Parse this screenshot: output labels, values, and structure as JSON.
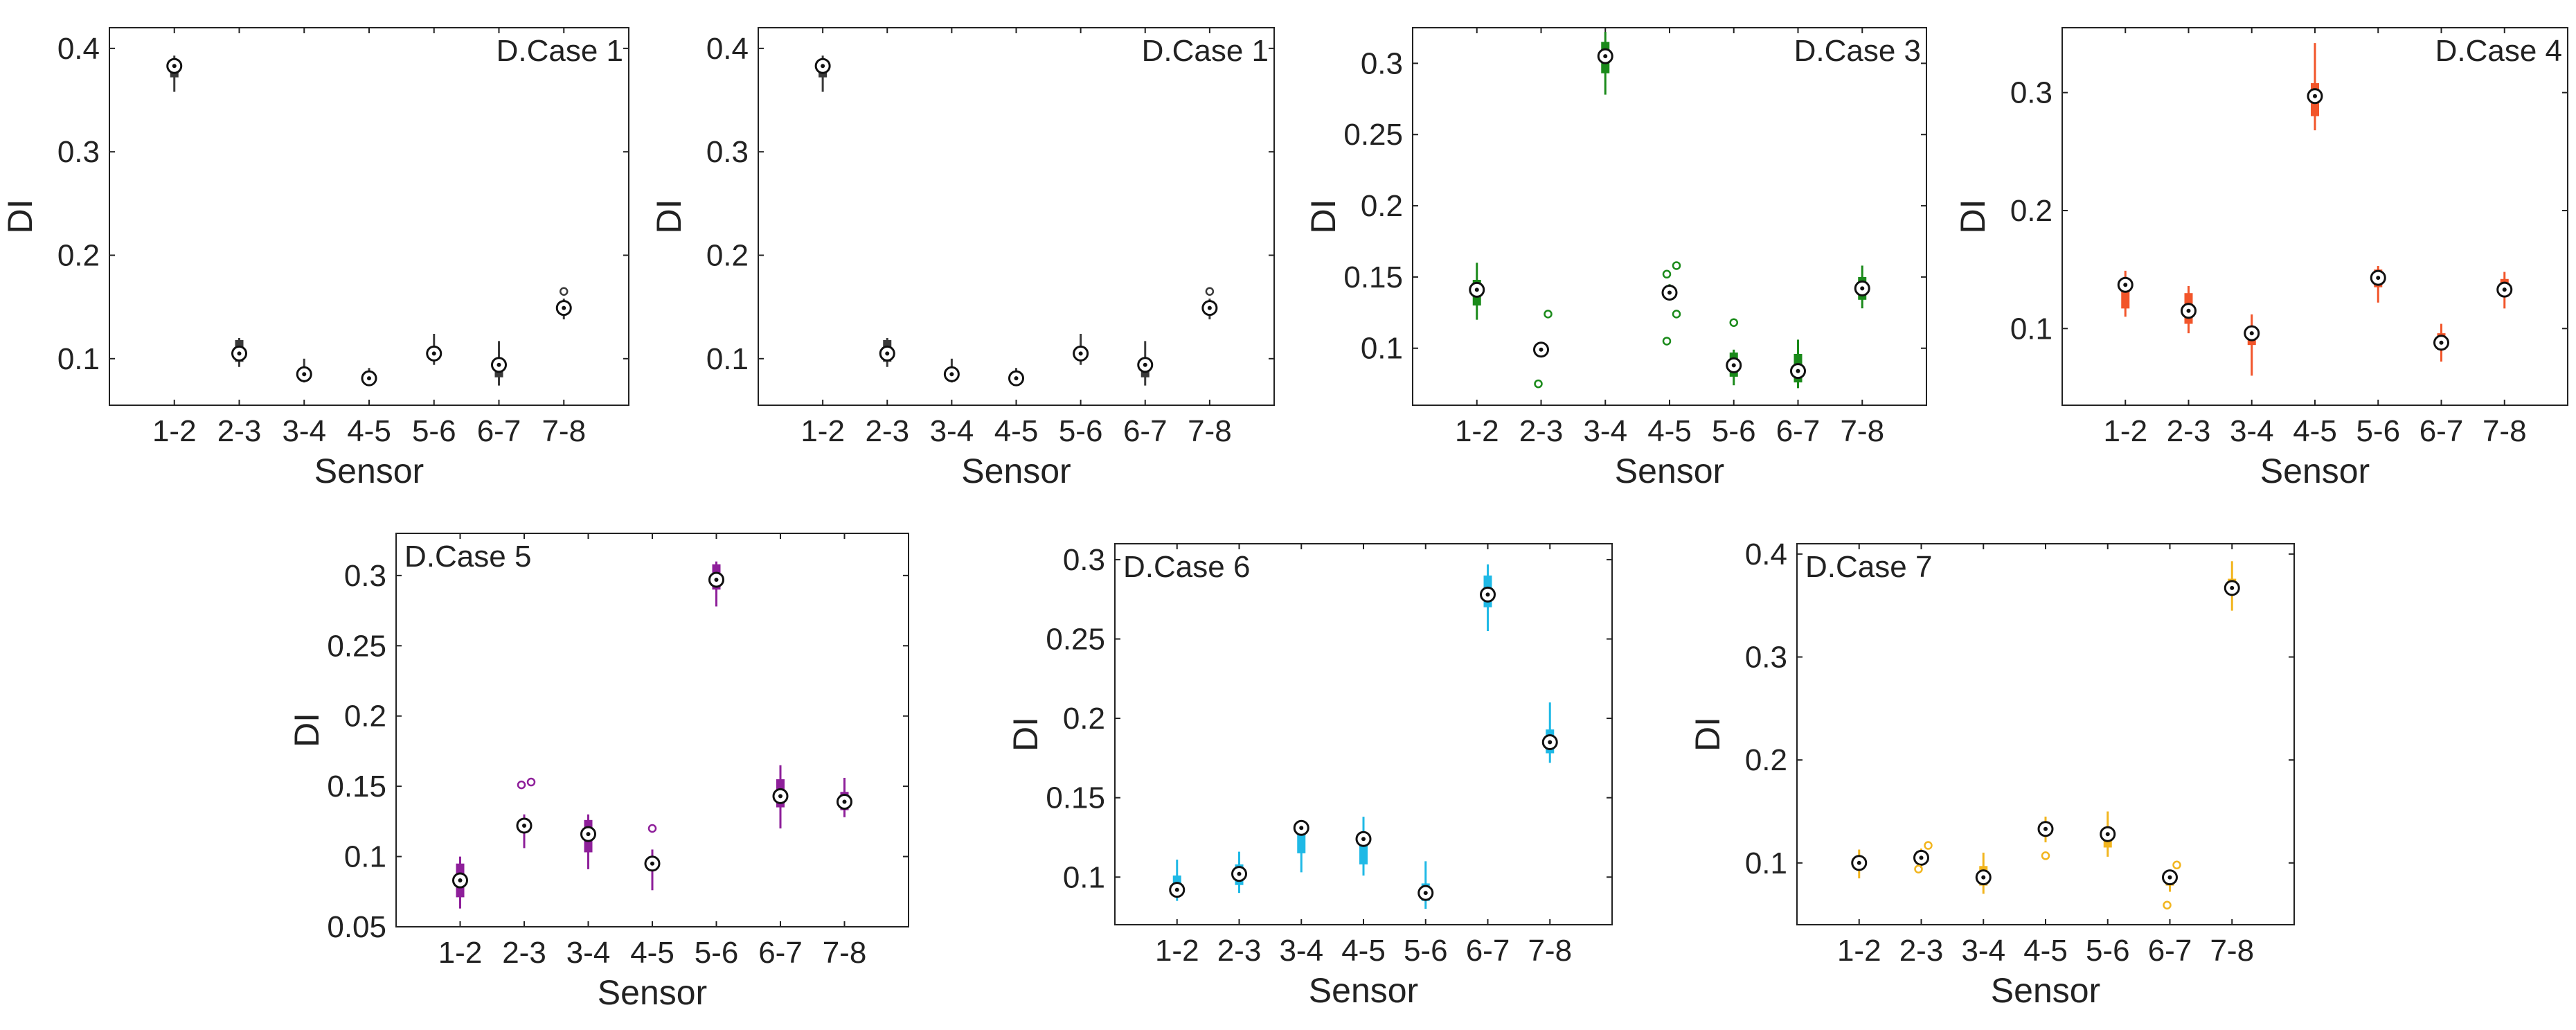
{
  "chart_data": [
    {
      "type": "boxplot",
      "title": "D.Case 1",
      "xlabel": "Sensor",
      "ylabel": "DI",
      "color": "#3a3a3a",
      "ylim": [
        0.055,
        0.42
      ],
      "yticks": [
        0.1,
        0.2,
        0.3,
        0.4
      ],
      "ytick_labels": [
        "0.1",
        "0.2",
        "0.3",
        "0.4"
      ],
      "categories": [
        "1-2",
        "2-3",
        "3-4",
        "4-5",
        "5-6",
        "6-7",
        "7-8"
      ],
      "boxes": [
        {
          "q1": 0.372,
          "q3": 0.388,
          "median": 0.383,
          "wlo": 0.358,
          "whi": 0.393,
          "outliers": []
        },
        {
          "q1": 0.097,
          "q3": 0.118,
          "median": 0.105,
          "wlo": 0.092,
          "whi": 0.12,
          "outliers": []
        },
        {
          "q1": 0.08,
          "q3": 0.088,
          "median": 0.085,
          "wlo": 0.077,
          "whi": 0.1,
          "outliers": []
        },
        {
          "q1": 0.078,
          "q3": 0.084,
          "median": 0.081,
          "wlo": 0.074,
          "whi": 0.091,
          "outliers": []
        },
        {
          "q1": 0.1,
          "q3": 0.109,
          "median": 0.105,
          "wlo": 0.094,
          "whi": 0.124,
          "outliers": []
        },
        {
          "q1": 0.082,
          "q3": 0.097,
          "median": 0.094,
          "wlo": 0.074,
          "whi": 0.117,
          "outliers": []
        },
        {
          "q1": 0.145,
          "q3": 0.152,
          "median": 0.149,
          "wlo": 0.138,
          "whi": 0.158,
          "outliers": [
            0.165
          ]
        }
      ]
    },
    {
      "type": "boxplot",
      "title": "D.Case 1",
      "xlabel": "Sensor",
      "ylabel": "DI",
      "color": "#3a3a3a",
      "ylim": [
        0.055,
        0.42
      ],
      "yticks": [
        0.1,
        0.2,
        0.3,
        0.4
      ],
      "ytick_labels": [
        "0.1",
        "0.2",
        "0.3",
        "0.4"
      ],
      "categories": [
        "1-2",
        "2-3",
        "3-4",
        "4-5",
        "5-6",
        "6-7",
        "7-8"
      ],
      "boxes": [
        {
          "q1": 0.372,
          "q3": 0.388,
          "median": 0.383,
          "wlo": 0.358,
          "whi": 0.393,
          "outliers": []
        },
        {
          "q1": 0.097,
          "q3": 0.118,
          "median": 0.105,
          "wlo": 0.092,
          "whi": 0.12,
          "outliers": []
        },
        {
          "q1": 0.08,
          "q3": 0.088,
          "median": 0.085,
          "wlo": 0.077,
          "whi": 0.1,
          "outliers": []
        },
        {
          "q1": 0.078,
          "q3": 0.084,
          "median": 0.081,
          "wlo": 0.074,
          "whi": 0.091,
          "outliers": []
        },
        {
          "q1": 0.1,
          "q3": 0.109,
          "median": 0.105,
          "wlo": 0.094,
          "whi": 0.124,
          "outliers": []
        },
        {
          "q1": 0.082,
          "q3": 0.097,
          "median": 0.094,
          "wlo": 0.074,
          "whi": 0.117,
          "outliers": []
        },
        {
          "q1": 0.145,
          "q3": 0.152,
          "median": 0.149,
          "wlo": 0.138,
          "whi": 0.158,
          "outliers": [
            0.165
          ]
        }
      ]
    },
    {
      "type": "boxplot",
      "title": "D.Case 3",
      "xlabel": "Sensor",
      "ylabel": "DI",
      "color": "#1a8a1a",
      "ylim": [
        0.06,
        0.325
      ],
      "yticks": [
        0.1,
        0.15,
        0.2,
        0.25,
        0.3
      ],
      "ytick_labels": [
        "0.1",
        "0.15",
        "0.2",
        "0.25",
        "0.3"
      ],
      "categories": [
        "1-2",
        "2-3",
        "3-4",
        "4-5",
        "5-6",
        "6-7",
        "7-8"
      ],
      "boxes": [
        {
          "q1": 0.13,
          "q3": 0.148,
          "median": 0.141,
          "wlo": 0.12,
          "whi": 0.16,
          "outliers": []
        },
        {
          "q1": 0.096,
          "q3": 0.102,
          "median": 0.099,
          "wlo": 0.094,
          "whi": 0.104,
          "outliers": [
            0.124,
            0.075
          ]
        },
        {
          "q1": 0.293,
          "q3": 0.315,
          "median": 0.305,
          "wlo": 0.278,
          "whi": 0.322,
          "outliers": []
        },
        {
          "q1": 0.136,
          "q3": 0.142,
          "median": 0.139,
          "wlo": 0.134,
          "whi": 0.145,
          "outliers": [
            0.158,
            0.152,
            0.124,
            0.105
          ]
        },
        {
          "q1": 0.08,
          "q3": 0.097,
          "median": 0.088,
          "wlo": 0.074,
          "whi": 0.099,
          "outliers": [
            0.118
          ]
        },
        {
          "q1": 0.076,
          "q3": 0.096,
          "median": 0.084,
          "wlo": 0.072,
          "whi": 0.106,
          "outliers": []
        },
        {
          "q1": 0.134,
          "q3": 0.15,
          "median": 0.142,
          "wlo": 0.128,
          "whi": 0.158,
          "outliers": []
        }
      ]
    },
    {
      "type": "boxplot",
      "title": "D.Case 4",
      "xlabel": "Sensor",
      "ylabel": "DI",
      "color": "#f2552a",
      "ylim": [
        0.035,
        0.355
      ],
      "yticks": [
        0.1,
        0.2,
        0.3
      ],
      "ytick_labels": [
        "0.1",
        "0.2",
        "0.3"
      ],
      "categories": [
        "1-2",
        "2-3",
        "3-4",
        "4-5",
        "5-6",
        "6-7",
        "7-8"
      ],
      "boxes": [
        {
          "q1": 0.117,
          "q3": 0.142,
          "median": 0.137,
          "wlo": 0.11,
          "whi": 0.149,
          "outliers": []
        },
        {
          "q1": 0.104,
          "q3": 0.13,
          "median": 0.115,
          "wlo": 0.096,
          "whi": 0.136,
          "outliers": []
        },
        {
          "q1": 0.086,
          "q3": 0.1,
          "median": 0.096,
          "wlo": 0.06,
          "whi": 0.112,
          "outliers": []
        },
        {
          "q1": 0.28,
          "q3": 0.308,
          "median": 0.297,
          "wlo": 0.268,
          "whi": 0.342,
          "outliers": []
        },
        {
          "q1": 0.135,
          "q3": 0.15,
          "median": 0.143,
          "wlo": 0.122,
          "whi": 0.153,
          "outliers": []
        },
        {
          "q1": 0.082,
          "q3": 0.096,
          "median": 0.088,
          "wlo": 0.072,
          "whi": 0.104,
          "outliers": []
        },
        {
          "q1": 0.127,
          "q3": 0.142,
          "median": 0.133,
          "wlo": 0.117,
          "whi": 0.148,
          "outliers": []
        }
      ]
    },
    {
      "type": "boxplot",
      "title": "D.Case 5",
      "xlabel": "Sensor",
      "ylabel": "DI",
      "color": "#8e1f9a",
      "ylim": [
        0.05,
        0.33
      ],
      "yticks": [
        0.05,
        0.1,
        0.15,
        0.2,
        0.25,
        0.3
      ],
      "ytick_labels": [
        "0.05",
        "0.1",
        "0.15",
        "0.2",
        "0.25",
        "0.3"
      ],
      "categories": [
        "1-2",
        "2-3",
        "3-4",
        "4-5",
        "5-6",
        "6-7",
        "7-8"
      ],
      "boxes": [
        {
          "q1": 0.071,
          "q3": 0.095,
          "median": 0.083,
          "wlo": 0.063,
          "whi": 0.1,
          "outliers": []
        },
        {
          "q1": 0.117,
          "q3": 0.127,
          "median": 0.122,
          "wlo": 0.106,
          "whi": 0.13,
          "outliers": [
            0.153,
            0.151
          ]
        },
        {
          "q1": 0.103,
          "q3": 0.126,
          "median": 0.116,
          "wlo": 0.091,
          "whi": 0.13,
          "outliers": []
        },
        {
          "q1": 0.09,
          "q3": 0.1,
          "median": 0.095,
          "wlo": 0.076,
          "whi": 0.105,
          "outliers": [
            0.12
          ]
        },
        {
          "q1": 0.29,
          "q3": 0.308,
          "median": 0.297,
          "wlo": 0.278,
          "whi": 0.31,
          "outliers": []
        },
        {
          "q1": 0.135,
          "q3": 0.155,
          "median": 0.143,
          "wlo": 0.12,
          "whi": 0.165,
          "outliers": []
        },
        {
          "q1": 0.133,
          "q3": 0.146,
          "median": 0.139,
          "wlo": 0.128,
          "whi": 0.156,
          "outliers": []
        }
      ]
    },
    {
      "type": "boxplot",
      "title": "D.Case 6",
      "xlabel": "Sensor",
      "ylabel": "DI",
      "color": "#1fb9e6",
      "ylim": [
        0.07,
        0.31
      ],
      "yticks": [
        0.1,
        0.15,
        0.2,
        0.25,
        0.3
      ],
      "ytick_labels": [
        "0.1",
        "0.15",
        "0.2",
        "0.25",
        "0.3"
      ],
      "categories": [
        "1-2",
        "2-3",
        "3-4",
        "4-5",
        "5-6",
        "6-7",
        "7-8"
      ],
      "boxes": [
        {
          "q1": 0.088,
          "q3": 0.101,
          "median": 0.092,
          "wlo": 0.085,
          "whi": 0.111,
          "outliers": []
        },
        {
          "q1": 0.095,
          "q3": 0.108,
          "median": 0.102,
          "wlo": 0.09,
          "whi": 0.116,
          "outliers": []
        },
        {
          "q1": 0.115,
          "q3": 0.131,
          "median": 0.131,
          "wlo": 0.103,
          "whi": 0.134,
          "outliers": []
        },
        {
          "q1": 0.108,
          "q3": 0.128,
          "median": 0.124,
          "wlo": 0.101,
          "whi": 0.138,
          "outliers": []
        },
        {
          "q1": 0.085,
          "q3": 0.096,
          "median": 0.09,
          "wlo": 0.08,
          "whi": 0.11,
          "outliers": []
        },
        {
          "q1": 0.27,
          "q3": 0.29,
          "median": 0.278,
          "wlo": 0.255,
          "whi": 0.297,
          "outliers": []
        },
        {
          "q1": 0.178,
          "q3": 0.193,
          "median": 0.185,
          "wlo": 0.172,
          "whi": 0.21,
          "outliers": []
        }
      ]
    },
    {
      "type": "boxplot",
      "title": "D.Case 7",
      "xlabel": "Sensor",
      "ylabel": "DI",
      "color": "#f2b51e",
      "ylim": [
        0.04,
        0.41
      ],
      "yticks": [
        0.1,
        0.2,
        0.3,
        0.4
      ],
      "ytick_labels": [
        "0.1",
        "0.2",
        "0.3",
        "0.4"
      ],
      "categories": [
        "1-2",
        "2-3",
        "3-4",
        "4-5",
        "5-6",
        "6-7",
        "7-8"
      ],
      "boxes": [
        {
          "q1": 0.094,
          "q3": 0.104,
          "median": 0.1,
          "wlo": 0.085,
          "whi": 0.113,
          "outliers": []
        },
        {
          "q1": 0.101,
          "q3": 0.11,
          "median": 0.105,
          "wlo": 0.095,
          "whi": 0.114,
          "outliers": [
            0.117,
            0.094
          ]
        },
        {
          "q1": 0.078,
          "q3": 0.097,
          "median": 0.086,
          "wlo": 0.07,
          "whi": 0.11,
          "outliers": []
        },
        {
          "q1": 0.127,
          "q3": 0.14,
          "median": 0.133,
          "wlo": 0.12,
          "whi": 0.145,
          "outliers": [
            0.107
          ]
        },
        {
          "q1": 0.115,
          "q3": 0.135,
          "median": 0.128,
          "wlo": 0.106,
          "whi": 0.15,
          "outliers": []
        },
        {
          "q1": 0.078,
          "q3": 0.09,
          "median": 0.086,
          "wlo": 0.072,
          "whi": 0.092,
          "outliers": [
            0.098,
            0.059
          ]
        },
        {
          "q1": 0.362,
          "q3": 0.376,
          "median": 0.367,
          "wlo": 0.345,
          "whi": 0.393,
          "outliers": []
        }
      ]
    }
  ]
}
